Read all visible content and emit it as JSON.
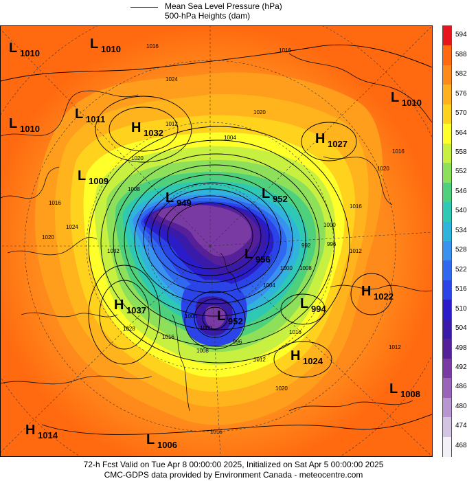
{
  "legend": {
    "line1": "Mean Sea Level Pressure (hPa)",
    "line2": "500-hPa Heights (dam)"
  },
  "colorbar": {
    "levels": [
      "594",
      "588",
      "582",
      "576",
      "570",
      "564",
      "558",
      "552",
      "546",
      "540",
      "534",
      "528",
      "522",
      "516",
      "510",
      "504",
      "498",
      "492",
      "486",
      "480",
      "474",
      "468"
    ],
    "colors": [
      "#e8141c",
      "#ff6a10",
      "#ff8a1c",
      "#ffb01e",
      "#ffd21e",
      "#ffff2a",
      "#c8f040",
      "#8ee05a",
      "#4ed07c",
      "#2ec8b4",
      "#30b4dc",
      "#3a92f0",
      "#3068f0",
      "#2a44e8",
      "#2a1cc8",
      "#3a1aa8",
      "#56209a",
      "#7a3aa4",
      "#9a64b8",
      "#b896d0",
      "#d4c4e4",
      "#f4f0f8"
    ]
  },
  "pressure_systems": [
    {
      "type": "L",
      "value": "1010"
    },
    {
      "type": "L",
      "value": "1010"
    },
    {
      "type": "L",
      "value": "1010"
    },
    {
      "type": "L",
      "value": "1011"
    },
    {
      "type": "H",
      "value": "1032"
    },
    {
      "type": "L",
      "value": "1009"
    },
    {
      "type": "L",
      "value": "949"
    },
    {
      "type": "L",
      "value": "952"
    },
    {
      "type": "L",
      "value": "956"
    },
    {
      "type": "H",
      "value": "1027"
    },
    {
      "type": "L",
      "value": "1010"
    },
    {
      "type": "H",
      "value": "1037"
    },
    {
      "type": "L",
      "value": "952"
    },
    {
      "type": "L",
      "value": "994"
    },
    {
      "type": "H",
      "value": "1022"
    },
    {
      "type": "H",
      "value": "1024"
    },
    {
      "type": "L",
      "value": "1008"
    },
    {
      "type": "H",
      "value": "1014"
    },
    {
      "type": "L",
      "value": "1006"
    }
  ],
  "contour_labels": [
    "1016",
    "1016",
    "1024",
    "1020",
    "1012",
    "1020",
    "1016",
    "1024",
    "1020",
    "1008",
    "1004",
    "1000",
    "996",
    "992",
    "1000",
    "1012",
    "1016",
    "1020",
    "1016",
    "1012",
    "1008",
    "1004",
    "1000",
    "996",
    "1004",
    "1008",
    "1016",
    "1012",
    "1020",
    "1016",
    "1028",
    "1032",
    "1016"
  ],
  "footer": {
    "line1": "72-h Fcst Valid on Tue Apr  8 00:00:00 2025, Initialized on Sat Apr  5 00:00:00 2025",
    "line2": "CMC-GDPS data provided by Environment Canada - meteocentre.com"
  }
}
